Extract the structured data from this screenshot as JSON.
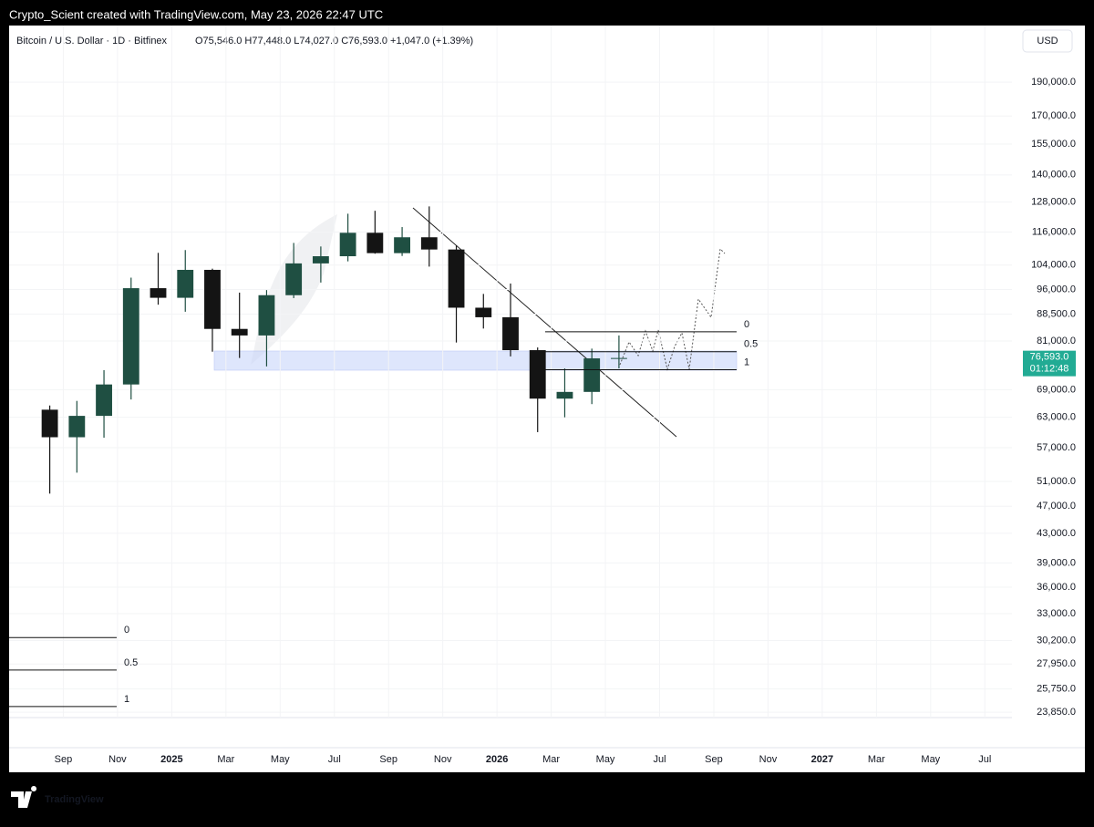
{
  "header": {
    "credit": "Crypto_Scient created with TradingView.com, May 23, 2026 22:47 UTC",
    "symbol": "Bitcoin / U.S. Dollar · 1D · Bitfinex",
    "ohlc": "O75,546.0 H77,448.0 L74,027.0 C76,593.0 +1,047.0 (+1.39%)",
    "currency": "USD"
  },
  "footer": {
    "brand": "TradingView"
  },
  "chart_data": {
    "type": "candlestick",
    "log_scale": true,
    "grid": true,
    "up_color": "#1f4f42",
    "down_color": "#141414",
    "x": [
      "2024-08",
      "2024-09",
      "2024-10",
      "2024-11",
      "2024-12",
      "2025-01",
      "2025-02",
      "2025-03",
      "2025-04",
      "2025-05",
      "2025-06",
      "2025-07",
      "2025-08",
      "2025-09",
      "2025-10",
      "2025-11",
      "2025-12",
      "2026-01",
      "2026-02",
      "2026-03",
      "2026-04",
      "2026-05"
    ],
    "open": [
      64600,
      59000,
      63300,
      70200,
      96400,
      93400,
      102400,
      84300,
      82500,
      94200,
      104600,
      107100,
      115700,
      108200,
      114000,
      109500,
      90400,
      87600,
      78600,
      67000,
      68500,
      76500
    ],
    "high": [
      65500,
      66500,
      73600,
      99800,
      108300,
      109300,
      102800,
      95000,
      95800,
      111900,
      110600,
      123200,
      124400,
      117900,
      126200,
      111000,
      94600,
      97900,
      79300,
      74000,
      79000,
      82500
    ],
    "low": [
      49000,
      52500,
      58900,
      66800,
      91300,
      89200,
      78200,
      76600,
      74500,
      93300,
      98200,
      105300,
      108000,
      107200,
      103500,
      80600,
      84400,
      77000,
      60000,
      63000,
      65800,
      74027
    ],
    "close": [
      59000,
      63300,
      70200,
      96400,
      93400,
      102400,
      84300,
      82500,
      94200,
      104600,
      107100,
      115700,
      108200,
      114000,
      109500,
      90400,
      87600,
      78600,
      67000,
      68500,
      76500,
      76593
    ],
    "xlim": [
      "2024-07",
      "2027-08"
    ],
    "xticks": [
      {
        "value": "2024-09",
        "label": "Sep"
      },
      {
        "value": "2024-11",
        "label": "Nov"
      },
      {
        "value": "2025-01",
        "label": "2025"
      },
      {
        "value": "2025-03",
        "label": "Mar"
      },
      {
        "value": "2025-05",
        "label": "May"
      },
      {
        "value": "2025-07",
        "label": "Jul"
      },
      {
        "value": "2025-09",
        "label": "Sep"
      },
      {
        "value": "2025-11",
        "label": "Nov"
      },
      {
        "value": "2026-01",
        "label": "2026"
      },
      {
        "value": "2026-03",
        "label": "Mar"
      },
      {
        "value": "2026-05",
        "label": "May"
      },
      {
        "value": "2026-07",
        "label": "Jul"
      },
      {
        "value": "2026-09",
        "label": "Sep"
      },
      {
        "value": "2026-11",
        "label": "Nov"
      },
      {
        "value": "2027-01",
        "label": "2027"
      },
      {
        "value": "2027-03",
        "label": "Mar"
      },
      {
        "value": "2027-05",
        "label": "May"
      },
      {
        "value": "2027-07",
        "label": "Jul"
      }
    ],
    "ylim": [
      23430,
      229000
    ],
    "yticks": [
      {
        "value": 190000,
        "label": "190,000.0"
      },
      {
        "value": 170000,
        "label": "170,000.0"
      },
      {
        "value": 155000,
        "label": "155,000.0"
      },
      {
        "value": 140000,
        "label": "140,000.0"
      },
      {
        "value": 128000,
        "label": "128,000.0"
      },
      {
        "value": 116000,
        "label": "116,000.0"
      },
      {
        "value": 104000,
        "label": "104,000.0"
      },
      {
        "value": 96000,
        "label": "96,000.0"
      },
      {
        "value": 88500,
        "label": "88,500.0"
      },
      {
        "value": 81000,
        "label": "81,000.0"
      },
      {
        "value": 69000,
        "label": "69,000.0"
      },
      {
        "value": 63000,
        "label": "63,000.0"
      },
      {
        "value": 57000,
        "label": "57,000.0"
      },
      {
        "value": 51000,
        "label": "51,000.0"
      },
      {
        "value": 47000,
        "label": "47,000.0"
      },
      {
        "value": 43000,
        "label": "43,000.0"
      },
      {
        "value": 39000,
        "label": "39,000.0"
      },
      {
        "value": 36000,
        "label": "36,000.0"
      },
      {
        "value": 33000,
        "label": "33,000.0"
      },
      {
        "value": 30200,
        "label": "30,200.0"
      },
      {
        "value": 27950,
        "label": "27,950.0"
      },
      {
        "value": 25750,
        "label": "25,750.0"
      },
      {
        "value": 23850,
        "label": "23,850.0"
      }
    ],
    "last_price": {
      "value": 76593,
      "label": "76,593.0",
      "color": "#22ab94"
    },
    "countdown": "01:12:48",
    "fib_main": [
      {
        "value": 83500,
        "label": "0"
      },
      {
        "value": 78200,
        "label": "0.5"
      },
      {
        "value": 73700,
        "label": "1"
      }
    ],
    "fib_lower": [
      {
        "value": 30500,
        "label": "0"
      },
      {
        "value": 27400,
        "label": "0.5"
      },
      {
        "value": 24300,
        "label": "1"
      }
    ]
  }
}
